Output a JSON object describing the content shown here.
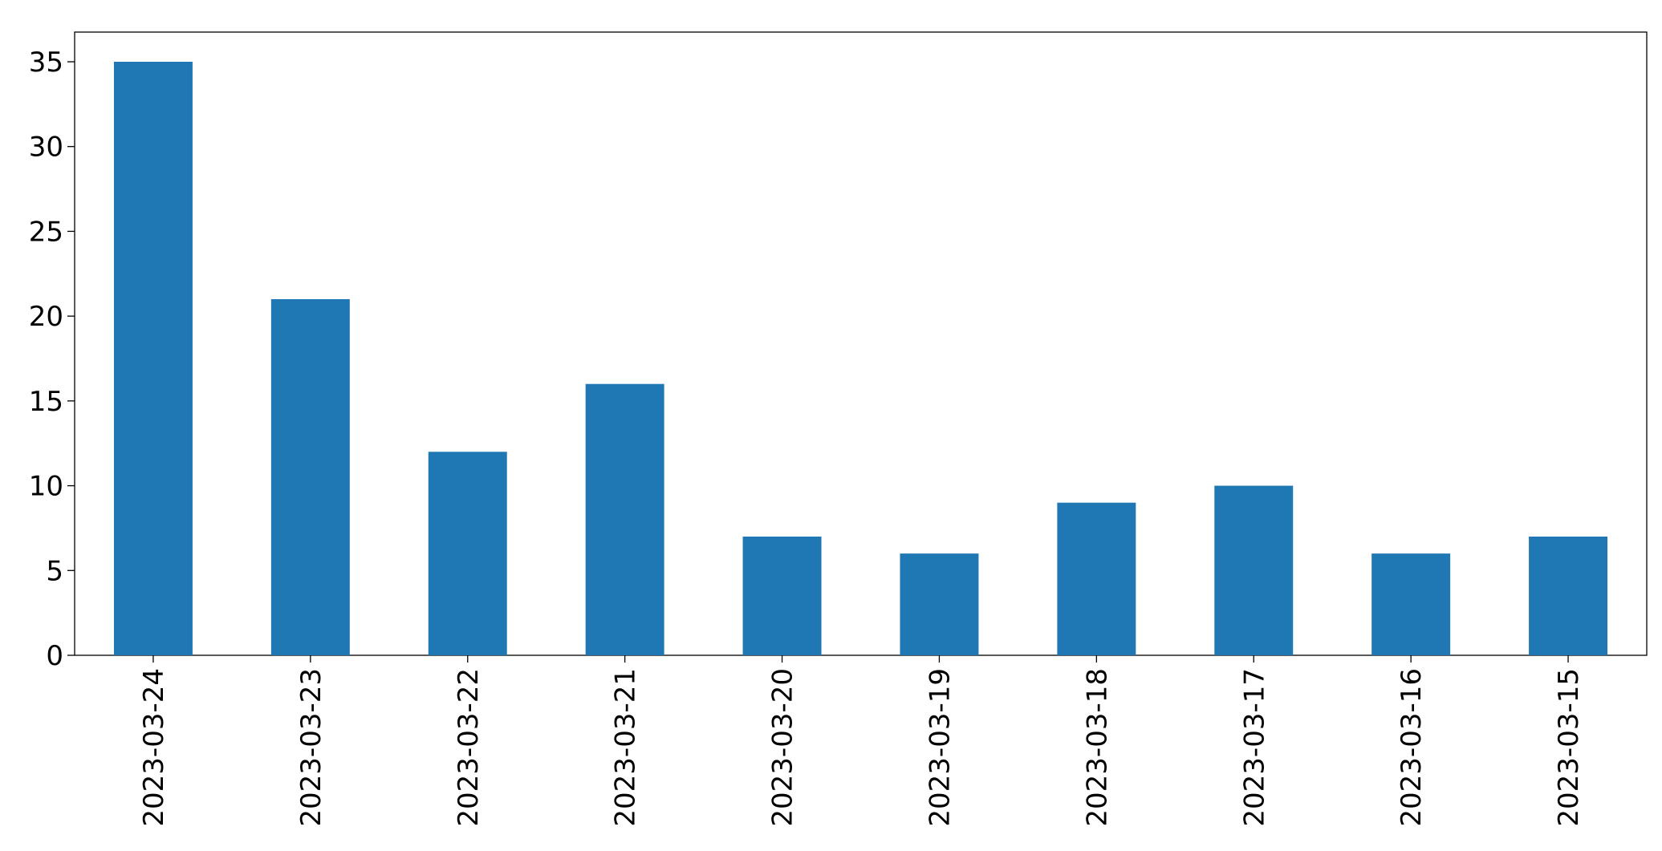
{
  "chart_data": {
    "type": "bar",
    "categories": [
      "2023-03-24",
      "2023-03-23",
      "2023-03-22",
      "2023-03-21",
      "2023-03-20",
      "2023-03-19",
      "2023-03-18",
      "2023-03-17",
      "2023-03-16",
      "2023-03-15"
    ],
    "values": [
      35,
      21,
      12,
      16,
      7,
      6,
      9,
      10,
      6,
      7
    ],
    "color": "#1f77b4",
    "ylim": [
      0,
      36.75
    ],
    "yticks": [
      0,
      5,
      10,
      15,
      20,
      25,
      30,
      35
    ],
    "grid": false
  }
}
